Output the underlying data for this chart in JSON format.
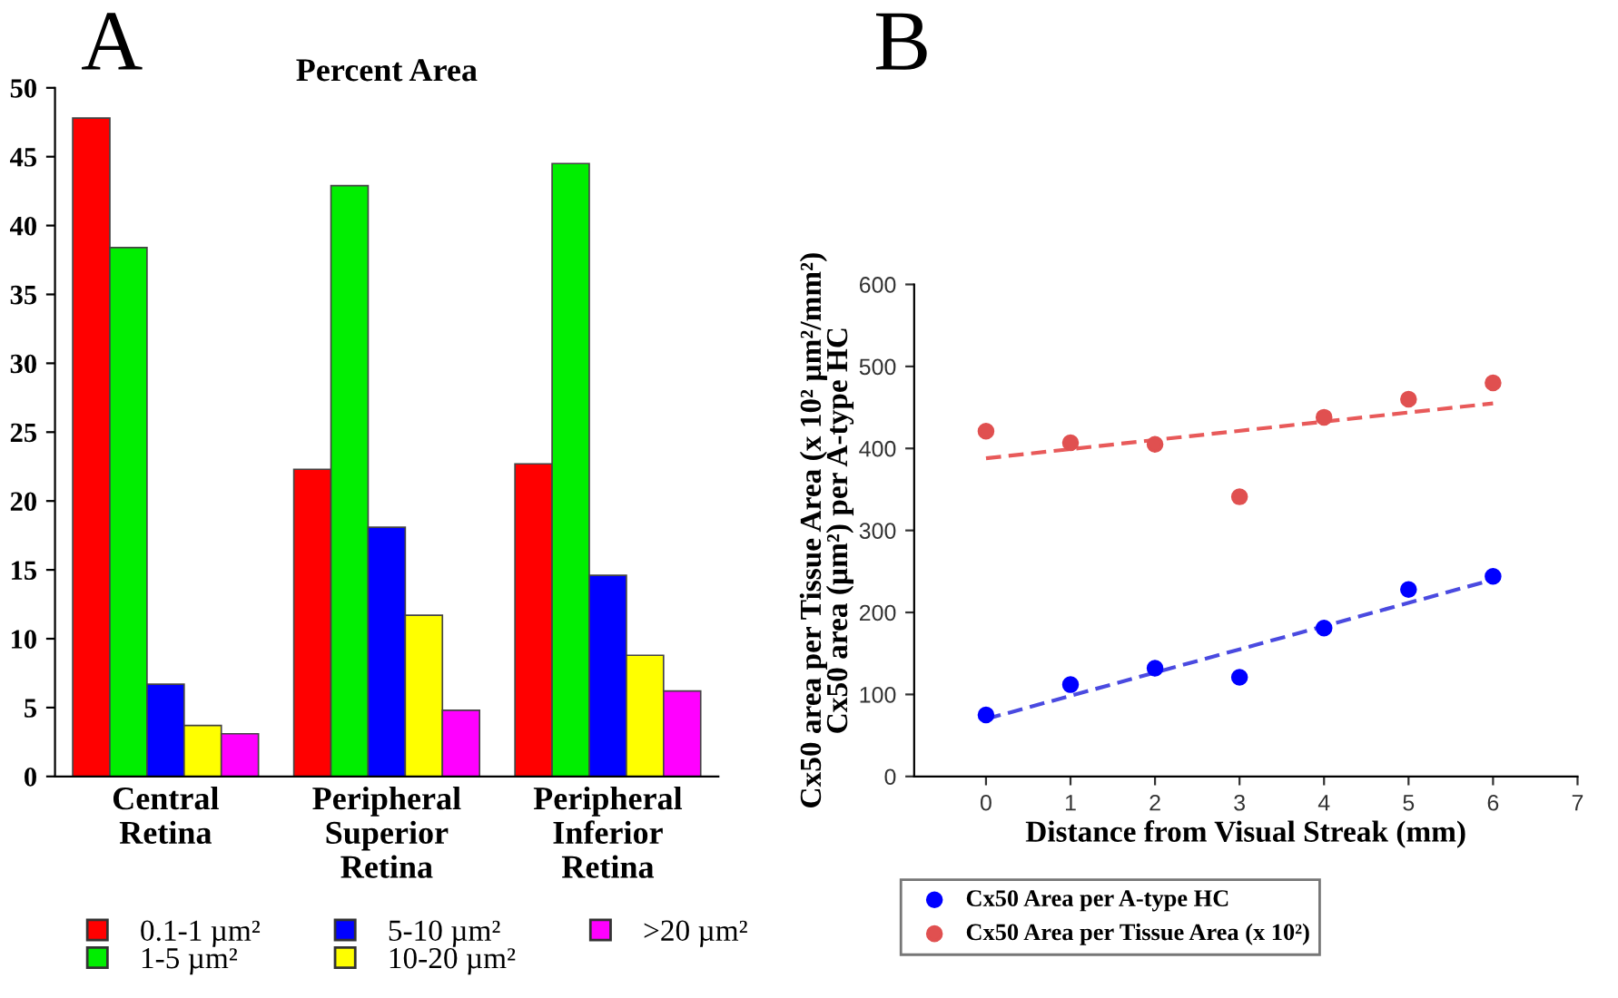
{
  "chart_data": [
    {
      "type": "bar",
      "title": "Percent Area",
      "annotations": [
        "A"
      ],
      "categories": [
        "Central\nRetina",
        "Peripheral\nSuperior\nRetina",
        "Peripheral\nInferior\nRetina"
      ],
      "series": [
        {
          "name": "0.1-1 µm²",
          "color": "#ff0000",
          "values": [
            47.8,
            22.3,
            22.7
          ]
        },
        {
          "name": "1-5 µm²",
          "color": "#00ee00",
          "values": [
            38.4,
            42.9,
            44.5
          ]
        },
        {
          "name": "5-10 µm²",
          "color": "#0000ff",
          "values": [
            6.7,
            18.1,
            14.6
          ]
        },
        {
          "name": "10-20 µm²",
          "color": "#ffff00",
          "values": [
            3.7,
            11.7,
            8.8
          ]
        },
        {
          "name": ">20 µm²",
          "color": "#ff00ff",
          "values": [
            3.1,
            4.8,
            6.2
          ]
        }
      ],
      "ylim": [
        0,
        50
      ],
      "yticks": [
        0,
        5,
        10,
        15,
        20,
        25,
        30,
        35,
        40,
        45,
        50
      ],
      "grid": false,
      "legend": "bottom",
      "marker": "square"
    },
    {
      "type": "scatter",
      "annotations": [
        "B"
      ],
      "xlabel": "Distance from Visual Streak (mm)",
      "ylabel": "Cx50 area per Tissue Area (x 10² µm²/mm²)\nCx50 area (µm²) per A-type HC",
      "series": [
        {
          "name": "Cx50 Area per A-type HC",
          "color": "#0000ff",
          "x": [
            0,
            1,
            2,
            3,
            4,
            5,
            6
          ],
          "values": [
            75,
            112,
            132,
            121,
            181,
            228,
            244
          ],
          "marker": "circle"
        },
        {
          "name": "Cx50 Area per Tissue Area (x 10²)",
          "color": "#e05050",
          "x": [
            0,
            1,
            2,
            3,
            4,
            5,
            6
          ],
          "values": [
            421,
            407,
            405,
            341,
            438,
            460,
            480
          ],
          "marker": "circle"
        },
        {
          "type": "line",
          "color": "#4a4ae0",
          "x": [
            0,
            6
          ],
          "values": [
            70,
            240
          ],
          "line_style": "dashed",
          "marker": "none"
        },
        {
          "type": "line",
          "color": "#e85a5a",
          "x": [
            0,
            6
          ],
          "values": [
            388,
            455
          ],
          "line_style": "dashed",
          "marker": "none"
        }
      ],
      "xlim": [
        -0.85,
        7
      ],
      "xticks": [
        0,
        1,
        2,
        3,
        4,
        5,
        6,
        7
      ],
      "ylim": [
        0,
        600
      ],
      "yticks": [
        0,
        100,
        200,
        300,
        400,
        500,
        600
      ],
      "grid": false,
      "legend": "bottom"
    }
  ]
}
